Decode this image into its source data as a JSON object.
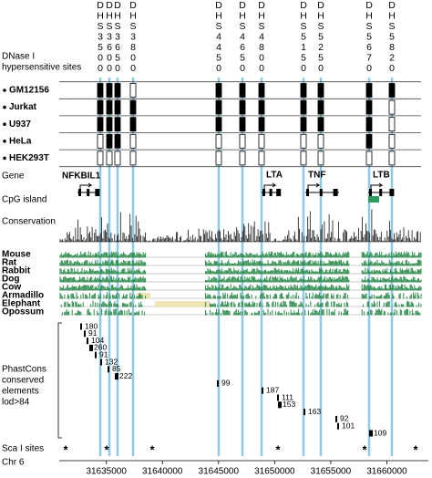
{
  "dhs": {
    "title_lines": [
      "DNase I",
      "hypersensitive sites"
    ],
    "sites": [
      "DHS3500",
      "DHS3600",
      "DHS3650",
      "DHS3800",
      "DHS4450",
      "DHS4650",
      "DHS4800",
      "DHS5150",
      "DHS5250",
      "DHS5670",
      "DHS5820"
    ],
    "cell_lines": [
      {
        "name": "GM12156",
        "fills": [
          "#000",
          "#000",
          "#000",
          "#fff",
          "#000",
          "#000",
          "#000",
          "#000",
          "#000",
          "#000",
          "#000"
        ]
      },
      {
        "name": "Jurkat",
        "fills": [
          "#000",
          "#000",
          "#000",
          "#000",
          "#000",
          "#000",
          "#000",
          "#000",
          "#000",
          "#000",
          "#fff"
        ]
      },
      {
        "name": "U937",
        "fills": [
          "#000",
          "#000",
          "#000",
          "#000",
          "#000",
          "#000",
          "#000",
          "#000",
          "#000",
          "#000",
          "#fff"
        ]
      },
      {
        "name": "HeLa",
        "fills": [
          "#fff",
          "#000",
          "#000",
          "#fff",
          "#fff",
          "#fff",
          "#fff",
          "#fff",
          "#fff",
          "#000",
          "#fff"
        ]
      },
      {
        "name": "HEK293T",
        "fills": [
          "#fff",
          "#fff",
          "#fff",
          "#fff",
          "#fff",
          "#fff",
          "#fff",
          "#fff",
          "#fff",
          "#fff",
          "#fff"
        ]
      }
    ]
  },
  "genes": {
    "label": "Gene",
    "names": [
      "NFKBIL1",
      "LTA",
      "TNF",
      "LTB"
    ]
  },
  "cpg": {
    "label": "CpG island",
    "color": "#2e9b62"
  },
  "conservation": {
    "label": "Conservation"
  },
  "species": {
    "names": [
      "Mouse",
      "Rat",
      "Rabbit",
      "Dog",
      "Cow",
      "Armadillo",
      "Elephant",
      "Opossum"
    ],
    "color": "#2a8a4a"
  },
  "phastcons": {
    "label_lines": [
      "PhastCons",
      "conserved",
      "elements",
      "lod>84"
    ],
    "lods": [
      180,
      91,
      104,
      260,
      91,
      132,
      85,
      222,
      99,
      187,
      111,
      153,
      163,
      92,
      101,
      109
    ]
  },
  "sca": {
    "label": "Sca I sites",
    "marker": "*"
  },
  "axis": {
    "label": "Chr 6",
    "xlim": [
      31630800,
      31663700
    ],
    "xticks": [
      31635000,
      31640000,
      31645000,
      31650000,
      31655000,
      31660000
    ]
  }
}
